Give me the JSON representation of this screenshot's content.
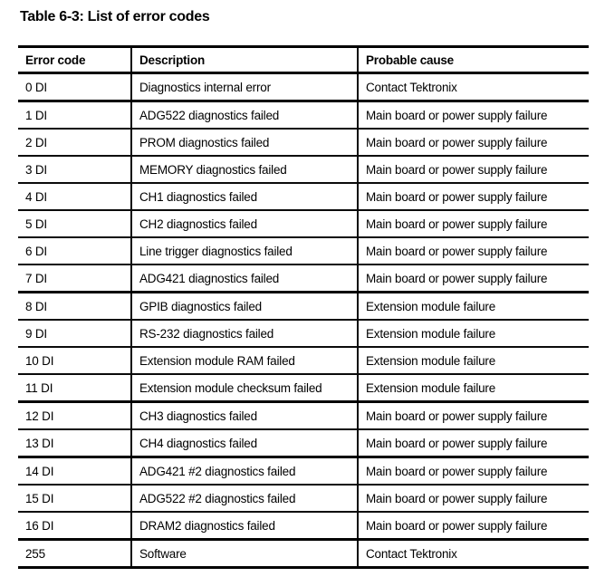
{
  "title": "Table 6-3: List of error codes",
  "table": {
    "headers": [
      "Error code",
      "Description",
      "Probable cause"
    ],
    "rows": [
      {
        "code": "0 DI",
        "description": "Diagnostics internal error",
        "cause": "Contact Tektronix",
        "thick_top": false
      },
      {
        "code": "1 DI",
        "description": "ADG522 diagnostics failed",
        "cause": "Main board or power supply failure",
        "thick_top": true
      },
      {
        "code": "2 DI",
        "description": "PROM diagnostics failed",
        "cause": "Main board or power supply failure",
        "thick_top": false
      },
      {
        "code": "3 DI",
        "description": "MEMORY diagnostics failed",
        "cause": "Main board or power supply failure",
        "thick_top": false
      },
      {
        "code": "4 DI",
        "description": "CH1 diagnostics failed",
        "cause": "Main board or power supply failure",
        "thick_top": false
      },
      {
        "code": "5 DI",
        "description": "CH2 diagnostics failed",
        "cause": "Main board or power supply failure",
        "thick_top": false
      },
      {
        "code": "6 DI",
        "description": "Line trigger diagnostics failed",
        "cause": "Main board or power supply failure",
        "thick_top": false
      },
      {
        "code": "7 DI",
        "description": "ADG421 diagnostics failed",
        "cause": "Main board or power supply failure",
        "thick_top": false
      },
      {
        "code": "8 DI",
        "description": "GPIB diagnostics failed",
        "cause": "Extension module failure",
        "thick_top": true
      },
      {
        "code": "9 DI",
        "description": "RS-232 diagnostics failed",
        "cause": "Extension module failure",
        "thick_top": false
      },
      {
        "code": "10 DI",
        "description": "Extension module RAM failed",
        "cause": "Extension module failure",
        "thick_top": false
      },
      {
        "code": "11 DI",
        "description": "Extension module checksum failed",
        "cause": "Extension module failure",
        "thick_top": false
      },
      {
        "code": "12 DI",
        "description": "CH3 diagnostics failed",
        "cause": "Main board or power supply failure",
        "thick_top": true
      },
      {
        "code": "13 DI",
        "description": "CH4 diagnostics failed",
        "cause": "Main board or power supply failure",
        "thick_top": false
      },
      {
        "code": "14 DI",
        "description": "ADG421 #2 diagnostics failed",
        "cause": "Main board or power supply failure",
        "thick_top": true
      },
      {
        "code": "15 DI",
        "description": "ADG522 #2 diagnostics failed",
        "cause": "Main board or power supply failure",
        "thick_top": false
      },
      {
        "code": "16 DI",
        "description": "DRAM2 diagnostics failed",
        "cause": "Main board or power supply failure",
        "thick_top": false
      },
      {
        "code": "255",
        "description": "Software",
        "cause": "Contact Tektronix",
        "thick_top": true
      }
    ]
  },
  "colors": {
    "background": "#ffffff",
    "text": "#000000",
    "border": "#000000"
  }
}
